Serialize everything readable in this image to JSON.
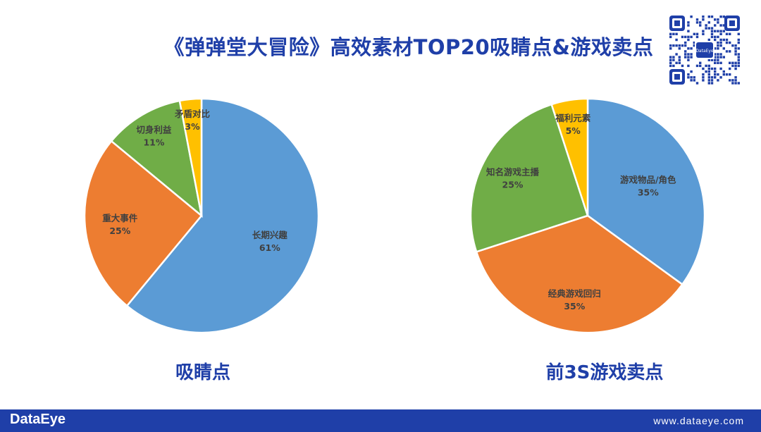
{
  "title": "《弹弹堂大冒险》高效素材TOP20吸睛点&游戏卖点",
  "footer": {
    "logo": "DataEye",
    "url": "www.dataeye.com"
  },
  "qr": {
    "center_label": "DataEye"
  },
  "chart_data": [
    {
      "type": "pie",
      "caption": "吸睛点",
      "slices": [
        {
          "label": "长期兴趣",
          "value": 61,
          "value_label": "61%",
          "color": "#5b9bd5"
        },
        {
          "label": "重大事件",
          "value": 25,
          "value_label": "25%",
          "color": "#ed7d31"
        },
        {
          "label": "切身利益",
          "value": 11,
          "value_label": "11%",
          "color": "#70ad47"
        },
        {
          "label": "矛盾对比",
          "value": 3,
          "value_label": "3%",
          "color": "#ffc000"
        }
      ]
    },
    {
      "type": "pie",
      "caption": "前3S游戏卖点",
      "slices": [
        {
          "label": "游戏物品/角色",
          "value": 35,
          "value_label": "35%",
          "color": "#5b9bd5"
        },
        {
          "label": "经典游戏回归",
          "value": 35,
          "value_label": "35%",
          "color": "#ed7d31"
        },
        {
          "label": "知名游戏主播",
          "value": 25,
          "value_label": "25%",
          "color": "#70ad47"
        },
        {
          "label": "福利元素",
          "value": 5,
          "value_label": "5%",
          "color": "#ffc000"
        }
      ]
    }
  ]
}
